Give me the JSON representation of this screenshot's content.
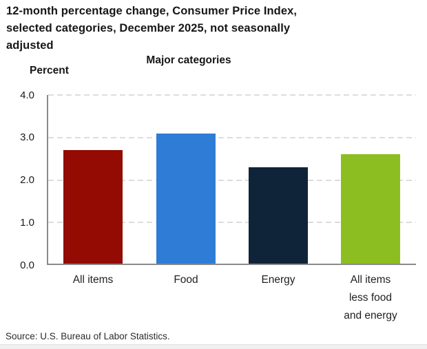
{
  "header": {
    "title_lines": [
      "12-month percentage change, Consumer Price Index,",
      "selected categories, December 2025, not seasonally",
      "adjusted"
    ],
    "subtitle": "Major categories",
    "axis_label": "Percent"
  },
  "chart_data": {
    "type": "bar",
    "title": "12-month percentage change, Consumer Price Index, selected categories, December 2025, not seasonally adjusted",
    "subtitle": "Major categories",
    "xlabel": "",
    "ylabel": "Percent",
    "categories": [
      "All items",
      "Food",
      "Energy",
      "All items less food and energy"
    ],
    "category_display": [
      "All items",
      "Food",
      "Energy",
      "All items\nless food\nand energy"
    ],
    "values": [
      2.7,
      3.1,
      2.3,
      2.6
    ],
    "colors": [
      "#930b02",
      "#2f7cd6",
      "#0f2439",
      "#8cbe22"
    ],
    "ylim": [
      0,
      4.0
    ],
    "yticks": [
      "0.0",
      "1.0",
      "2.0",
      "3.0",
      "4.0"
    ],
    "grid": "horizontal-dashed",
    "gridline_color": "#dcdcdc",
    "axis_color": "#8a8a8a",
    "legend": "none"
  },
  "footer": {
    "source": "Source: U.S. Bureau of Labor Statistics."
  }
}
